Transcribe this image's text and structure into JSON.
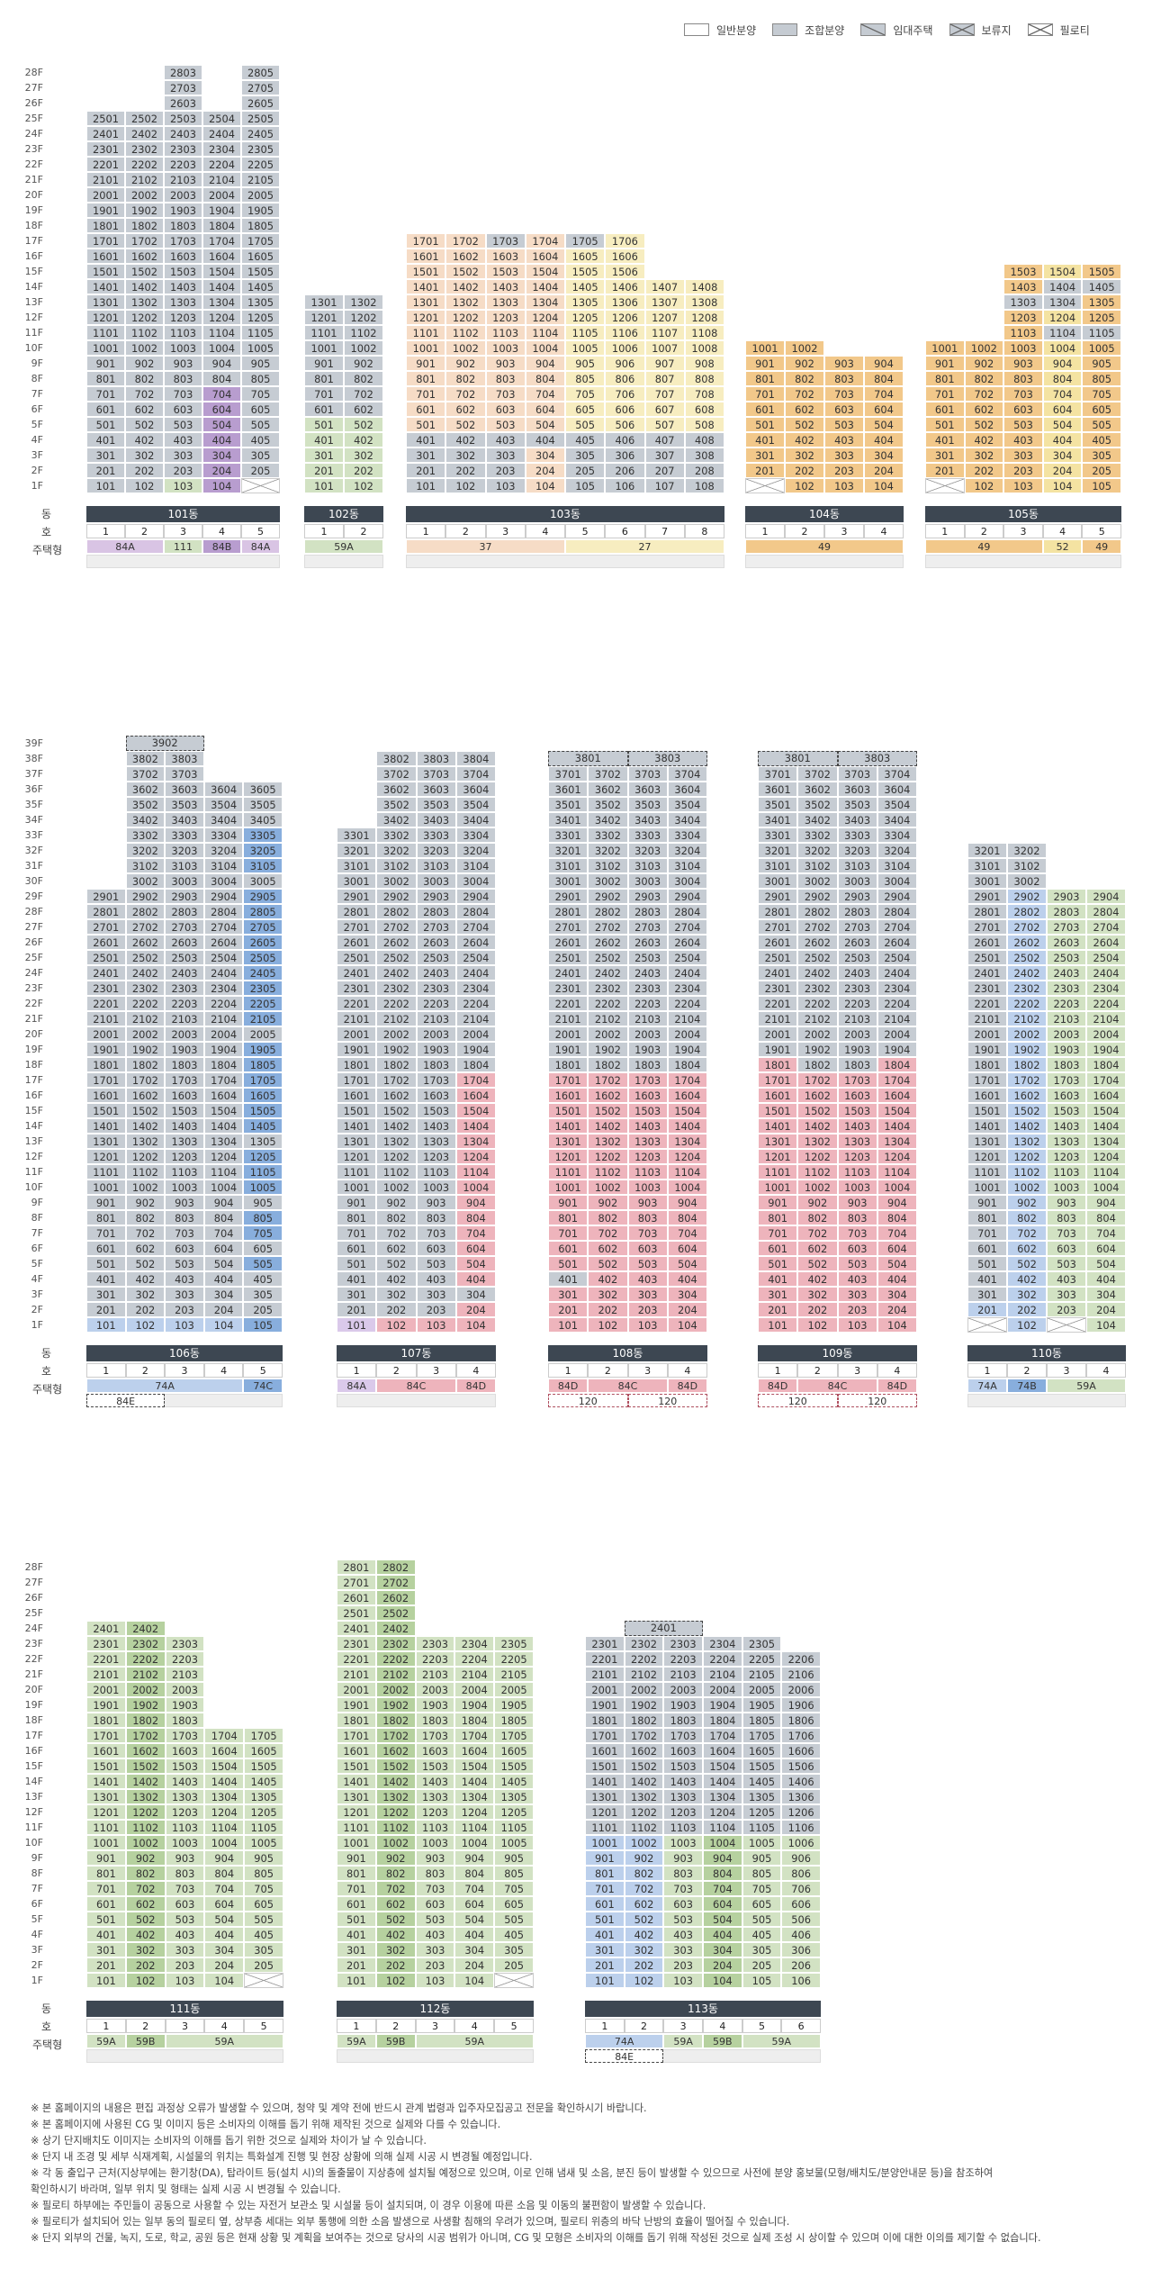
{
  "legend": [
    {
      "label": "일반분양",
      "color": "#ffffff",
      "pattern": "none"
    },
    {
      "label": "조합분양",
      "color": "#c5cbd2",
      "pattern": "none"
    },
    {
      "label": "임대주택",
      "color": "#c5cbd2",
      "pattern": "slash"
    },
    {
      "label": "보류지",
      "color": "#c5cbd2",
      "pattern": "cross"
    },
    {
      "label": "필로티",
      "color": "#ffffff",
      "pattern": "cross"
    }
  ],
  "colors": {
    "gray": "#c6ccd3",
    "purple": "#d9c4e4",
    "green": "#d2e2c3",
    "darkpurple": "#b89dcf",
    "peach": "#f6dcc6",
    "cream": "#f7edc0",
    "orange": "#f2c88a",
    "yellow": "#f4e3a2",
    "blue": "#bcd0ec",
    "darkblue": "#88aedd",
    "pink": "#eeb4bc",
    "lightpurple": "#dac9ea",
    "header": "#3d4752"
  },
  "row_labels": {
    "dong": "동",
    "ho": "호",
    "type": "주택형"
  },
  "buildings": [
    {
      "id": "101",
      "name": "101동",
      "lines": 5,
      "floors": 28,
      "tops": [
        25,
        25,
        28,
        25,
        28
      ],
      "col_colors": [
        "gray",
        "gray",
        "gray",
        "gray",
        "gray"
      ],
      "overrides": [
        {
          "col": 3,
          "from": 1,
          "to": 1,
          "c": "green"
        },
        {
          "col": 4,
          "from": 1,
          "to": 7,
          "c": "darkpurple"
        },
        {
          "col": 5,
          "from": 1,
          "to": 1,
          "c": "piloti"
        }
      ],
      "types": [
        {
          "span": 2,
          "label": "84A",
          "c": "purple"
        },
        {
          "span": 1,
          "label": "111",
          "c": "green"
        },
        {
          "span": 1,
          "label": "84B",
          "c": "darkpurple"
        },
        {
          "span": 1,
          "label": "84A",
          "c": "purple"
        }
      ]
    },
    {
      "id": "102",
      "name": "102동",
      "lines": 2,
      "floors": 13,
      "tops": [
        13,
        13
      ],
      "col_colors": [
        "gray",
        "gray"
      ],
      "overrides": [
        {
          "col": 1,
          "from": 1,
          "to": 5,
          "c": "green"
        },
        {
          "col": 2,
          "from": 1,
          "to": 5,
          "c": "green"
        }
      ],
      "types": [
        {
          "span": 2,
          "label": "59A",
          "c": "green"
        }
      ]
    },
    {
      "id": "103",
      "name": "103동",
      "lines": 8,
      "floors": 17,
      "tops": [
        17,
        17,
        17,
        17,
        17,
        17,
        14,
        14
      ],
      "col_colors": [
        "peach",
        "peach",
        "peach",
        "peach",
        "cream",
        "cream",
        "cream",
        "cream"
      ],
      "overrides": [
        {
          "col": 1,
          "from": 1,
          "to": 4,
          "c": "gray"
        },
        {
          "col": 3,
          "from": 17,
          "to": 17,
          "c": "gray"
        },
        {
          "col": 4,
          "from": 4,
          "to": 4,
          "c": "gray"
        },
        {
          "col": 5,
          "from": 17,
          "to": 17,
          "c": "gray"
        },
        {
          "col": 5,
          "from": 1,
          "to": 4,
          "c": "gray"
        },
        {
          "col": 6,
          "from": 1,
          "to": 4,
          "c": "gray"
        },
        {
          "col": 7,
          "from": 1,
          "to": 4,
          "c": "gray"
        },
        {
          "col": 8,
          "from": 1,
          "to": 4,
          "c": "gray"
        },
        {
          "col": 2,
          "from": 1,
          "to": 4,
          "c": "gray"
        },
        {
          "col": 3,
          "from": 1,
          "to": 4,
          "c": "gray"
        }
      ],
      "types": [
        {
          "span": 4,
          "label": "37",
          "c": "peach"
        },
        {
          "span": 4,
          "label": "27",
          "c": "cream"
        }
      ]
    },
    {
      "id": "104",
      "name": "104동",
      "lines": 4,
      "floors": 10,
      "tops": [
        10,
        10,
        9,
        9
      ],
      "col_colors": [
        "orange",
        "orange",
        "orange",
        "orange"
      ],
      "overrides": [
        {
          "col": 1,
          "from": 1,
          "to": 1,
          "c": "piloti"
        }
      ],
      "types": [
        {
          "span": 4,
          "label": "49",
          "c": "orange"
        }
      ]
    },
    {
      "id": "105",
      "name": "105동",
      "lines": 5,
      "floors": 15,
      "tops": [
        10,
        10,
        15,
        15,
        15
      ],
      "col_colors": [
        "orange",
        "orange",
        "orange",
        "orange",
        "orange"
      ],
      "overrides": [
        {
          "col": 1,
          "from": 1,
          "to": 1,
          "c": "piloti"
        },
        {
          "col": 4,
          "from": 1,
          "to": 15,
          "c": "yellow"
        },
        {
          "col": 3,
          "from": 13,
          "to": 13,
          "c": "gray"
        },
        {
          "col": 4,
          "from": 13,
          "to": 13,
          "c": "gray"
        },
        {
          "col": 4,
          "from": 14,
          "to": 14,
          "c": "gray"
        },
        {
          "col": 5,
          "from": 14,
          "to": 14,
          "c": "gray"
        },
        {
          "col": 4,
          "from": 11,
          "to": 11,
          "c": "gray"
        },
        {
          "col": 5,
          "from": 11,
          "to": 11,
          "c": "gray"
        }
      ],
      "types": [
        {
          "span": 3,
          "label": "49",
          "c": "orange"
        },
        {
          "span": 1,
          "label": "52",
          "c": "yellow"
        },
        {
          "span": 1,
          "label": "49",
          "c": "orange"
        }
      ]
    },
    {
      "id": "106",
      "name": "106동",
      "lines": 5,
      "floors": 39,
      "tops": [
        29,
        38,
        39,
        36,
        36
      ],
      "col_colors": [
        "gray",
        "gray",
        "gray",
        "gray",
        "darkblue"
      ],
      "overrides": [
        {
          "col": 1,
          "from": 1,
          "to": 1,
          "c": "blue"
        },
        {
          "col": 2,
          "from": 1,
          "to": 1,
          "c": "blue"
        },
        {
          "col": 3,
          "from": 1,
          "to": 1,
          "c": "blue"
        },
        {
          "col": 4,
          "from": 1,
          "to": 1,
          "c": "blue"
        },
        {
          "col": 5,
          "from": 34,
          "to": 36,
          "c": "gray"
        },
        {
          "col": 5,
          "from": 30,
          "to": 30,
          "c": "gray"
        },
        {
          "col": 5,
          "from": 20,
          "to": 20,
          "c": "gray"
        },
        {
          "col": 5,
          "from": 6,
          "to": 6,
          "c": "gray"
        },
        {
          "col": 5,
          "from": 9,
          "to": 9,
          "c": "gray"
        },
        {
          "col": 5,
          "from": 4,
          "to": 4,
          "c": "gray"
        },
        {
          "col": 5,
          "from": 13,
          "to": 13,
          "c": "gray"
        },
        {
          "col": 5,
          "from": 3,
          "to": 3,
          "c": "gray"
        },
        {
          "col": 5,
          "from": 2,
          "to": 2,
          "c": "gray"
        }
      ],
      "top_dash": "3902",
      "types": [
        {
          "span": 4,
          "label": "74A",
          "c": "blue"
        },
        {
          "span": 1,
          "label": "74C",
          "c": "darkblue"
        }
      ],
      "types2": [
        {
          "start": 1,
          "span": 2,
          "label": "84E",
          "dash": true
        }
      ]
    },
    {
      "id": "107",
      "name": "107동",
      "lines": 4,
      "floors": 38,
      "tops": [
        33,
        38,
        38,
        38
      ],
      "col_colors": [
        "gray",
        "gray",
        "gray",
        "gray"
      ],
      "overrides": [
        {
          "col": 4,
          "from": 2,
          "to": 17,
          "c": "pink"
        },
        {
          "col": 1,
          "from": 1,
          "to": 1,
          "c": "lightpurple"
        },
        {
          "col": 2,
          "from": 1,
          "to": 1,
          "c": "pink"
        },
        {
          "col": 3,
          "from": 1,
          "to": 1,
          "c": "pink"
        },
        {
          "col": 4,
          "from": 1,
          "to": 1,
          "c": "pink"
        },
        {
          "col": 4,
          "from": 3,
          "to": 3,
          "c": "gray"
        }
      ],
      "types": [
        {
          "span": 1,
          "label": "84A",
          "c": "lightpurple"
        },
        {
          "span": 2,
          "label": "84C",
          "c": "pink"
        },
        {
          "span": 1,
          "label": "84D",
          "c": "pink"
        }
      ]
    },
    {
      "id": "108",
      "name": "108동",
      "lines": 4,
      "floors": 38,
      "tops": [
        37,
        37,
        37,
        37
      ],
      "col_colors": [
        "gray",
        "gray",
        "gray",
        "gray"
      ],
      "overrides": [
        {
          "col": 1,
          "from": 1,
          "to": 17,
          "c": "pink"
        },
        {
          "col": 2,
          "from": 1,
          "to": 17,
          "c": "pink"
        },
        {
          "col": 3,
          "from": 1,
          "to": 17,
          "c": "pink"
        },
        {
          "col": 4,
          "from": 1,
          "to": 17,
          "c": "pink"
        },
        {
          "col": 1,
          "from": 4,
          "to": 4,
          "c": "gray"
        }
      ],
      "top_pairs": [
        "3801",
        "3803"
      ],
      "types": [
        {
          "span": 1,
          "label": "84D",
          "c": "pink"
        },
        {
          "span": 2,
          "label": "84C",
          "c": "pink"
        },
        {
          "span": 1,
          "label": "84D",
          "c": "pink"
        }
      ],
      "types2": [
        {
          "start": 1,
          "span": 2,
          "label": "120",
          "dash": true
        },
        {
          "start": 3,
          "span": 2,
          "label": "120",
          "dash": true
        }
      ]
    },
    {
      "id": "109",
      "name": "109동",
      "lines": 4,
      "floors": 38,
      "tops": [
        37,
        37,
        37,
        37
      ],
      "col_colors": [
        "gray",
        "gray",
        "gray",
        "gray"
      ],
      "overrides": [
        {
          "col": 1,
          "from": 1,
          "to": 18,
          "c": "pink"
        },
        {
          "col": 2,
          "from": 1,
          "to": 17,
          "c": "pink"
        },
        {
          "col": 3,
          "from": 1,
          "to": 17,
          "c": "pink"
        },
        {
          "col": 4,
          "from": 1,
          "to": 18,
          "c": "pink"
        }
      ],
      "top_pairs": [
        "3801",
        "3803"
      ],
      "types": [
        {
          "span": 1,
          "label": "84D",
          "c": "pink"
        },
        {
          "span": 2,
          "label": "84C",
          "c": "pink"
        },
        {
          "span": 1,
          "label": "84D",
          "c": "pink"
        }
      ],
      "types2": [
        {
          "start": 1,
          "span": 2,
          "label": "120",
          "dash": true
        },
        {
          "start": 3,
          "span": 2,
          "label": "120",
          "dash": true
        }
      ]
    },
    {
      "id": "110",
      "name": "110동",
      "lines": 4,
      "floors": 32,
      "tops": [
        32,
        32,
        29,
        29
      ],
      "col_colors": [
        "gray",
        "blue",
        "green",
        "green"
      ],
      "overrides": [
        {
          "col": 1,
          "from": 1,
          "to": 1,
          "c": "piloti"
        },
        {
          "col": 3,
          "from": 1,
          "to": 1,
          "c": "piloti"
        },
        {
          "col": 2,
          "from": 30,
          "to": 32,
          "c": "gray"
        },
        {
          "col": 1,
          "from": 2,
          "to": 2,
          "c": "blue"
        }
      ],
      "types": [
        {
          "span": 1,
          "label": "74A",
          "c": "blue"
        },
        {
          "span": 1,
          "label": "74B",
          "c": "darkblue"
        },
        {
          "span": 2,
          "label": "59A",
          "c": "green"
        }
      ]
    },
    {
      "id": "111",
      "name": "111동",
      "lines": 5,
      "floors": 28,
      "tops": [
        24,
        24,
        23,
        17,
        17
      ],
      "col_colors": [
        "green",
        "green",
        "green",
        "green",
        "green"
      ],
      "overrides": [
        {
          "col": 5,
          "from": 1,
          "to": 1,
          "c": "piloti"
        },
        {
          "col": 2,
          "from": 1,
          "to": 24,
          "c": "greenmid"
        }
      ],
      "types": [
        {
          "span": 1,
          "label": "59A",
          "c": "green"
        },
        {
          "span": 1,
          "label": "59B",
          "c": "greenmid"
        },
        {
          "span": 3,
          "label": "59A",
          "c": "green"
        }
      ]
    },
    {
      "id": "112",
      "name": "112동",
      "lines": 5,
      "floors": 28,
      "tops": [
        28,
        28,
        23,
        23,
        23
      ],
      "col_colors": [
        "green",
        "green",
        "green",
        "green",
        "green"
      ],
      "overrides": [
        {
          "col": 5,
          "from": 1,
          "to": 1,
          "c": "piloti"
        },
        {
          "col": 2,
          "from": 1,
          "to": 28,
          "c": "greenmid"
        }
      ],
      "types": [
        {
          "span": 1,
          "label": "59A",
          "c": "green"
        },
        {
          "span": 1,
          "label": "59B",
          "c": "greenmid"
        },
        {
          "span": 3,
          "label": "59A",
          "c": "green"
        }
      ]
    },
    {
      "id": "113",
      "name": "113동",
      "lines": 6,
      "floors": 28,
      "tops": [
        23,
        23,
        23,
        23,
        23,
        22
      ],
      "col_colors": [
        "blue",
        "blue",
        "green",
        "green",
        "green",
        "green"
      ],
      "overrides": [
        {
          "col": 1,
          "from": 11,
          "to": 23,
          "c": "gray"
        },
        {
          "col": 2,
          "from": 11,
          "to": 23,
          "c": "gray"
        },
        {
          "col": 3,
          "from": 11,
          "to": 23,
          "c": "gray"
        },
        {
          "col": 4,
          "from": 11,
          "to": 23,
          "c": "gray"
        },
        {
          "col": 5,
          "from": 11,
          "to": 23,
          "c": "gray"
        },
        {
          "col": 6,
          "from": 11,
          "to": 22,
          "c": "gray"
        },
        {
          "col": 4,
          "from": 1,
          "to": 10,
          "c": "greenmid"
        }
      ],
      "top_dash": "2401",
      "types": [
        {
          "span": 2,
          "label": "74A",
          "c": "blue"
        },
        {
          "span": 1,
          "label": "59A",
          "c": "green"
        },
        {
          "span": 1,
          "label": "59B",
          "c": "greenmid"
        },
        {
          "span": 2,
          "label": "59A",
          "c": "green"
        }
      ],
      "types2": [
        {
          "start": 1,
          "span": 2,
          "label": "84E",
          "dash": true
        }
      ]
    }
  ],
  "notes": [
    "※ 본 홈페이지의 내용은 편집 과정상 오류가 발생할 수 있으며, 청약 및 계약 전에 반드시 관계 법령과 입주자모집공고 전문을 확인하시기 바랍니다.",
    "※ 본 홈페이지에 사용된 CG 및 이미지 등은 소비자의 이해를 돕기 위해 제작된 것으로 실제와 다를 수 있습니다.",
    "※ 상기 단지배치도 이미지는 소비자의 이해를 돕기 위한 것으로 실제와 차이가 날 수 있습니다.",
    "※ 단지 내 조경 및 세부 식재계획, 시설물의 위치는 특화설계 진행 및 현장 상황에 의해 실제 시공 시 변경될 예정입니다.",
    "※ 각 동 출입구 근처(지상부에는 환기창(DA), 탑라이트 등(설치 시)의 돌출물이 지상층에 설치될 예정으로 있으며, 이로 인해 냄새 및 소음, 분진 등이 발생할 수 있으므로 사전에 분양 홍보물(모형/배치도/분양안내문 등)을 참조하여",
    "   확인하시기 바라며, 일부 위치 및 형태는 실제 시공 시 변경될 수 있습니다.",
    "※ 필로티 하부에는 주민들이 공동으로 사용할 수 있는 자전거 보관소 및 시설물 등이 설치되며, 이 경우 이용에 따른 소음 및 이동의 불편함이 발생할 수 있습니다.",
    "※ 필로티가 설치되어 있는 일부 동의 필로티 옆, 상부층 세대는 외부 통행에 의한 소음 발생으로 사생활 침해의 우려가 있으며, 필로티 위층의 바닥 난방의 효율이 떨어질 수 있습니다.",
    "※ 단지 외부의 건물, 녹지, 도로, 학교, 공원 등은 현재 상황 및 계획을 보여주는 것으로 당사의 시공 범위가 아니며, CG 및 모형은 소비자의 이해를 돕기 위해 작성된 것으로 실제 조성 시 상이할 수 있으며 이에 대한 이의를 제기할 수 없습니다."
  ]
}
